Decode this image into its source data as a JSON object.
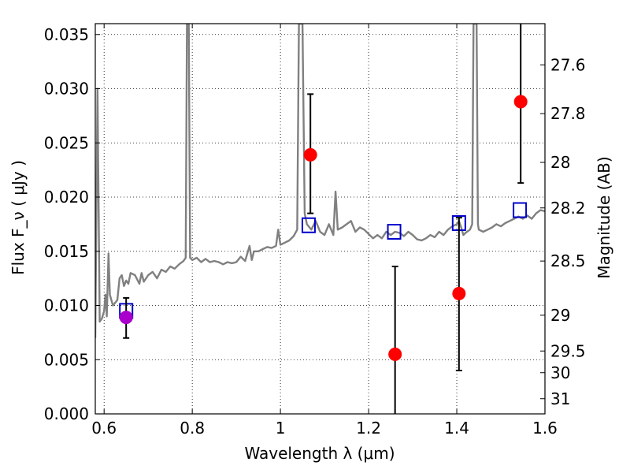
{
  "chart_data": {
    "type": "scatter",
    "xlabel": "Wavelength  λ (μm)",
    "ylabel": "Flux  F_ν  ( μJy )",
    "y2label": "Magnitude (AB)",
    "xlim": [
      0.58,
      1.6
    ],
    "ylim": [
      0.0,
      0.036
    ],
    "grid": true,
    "x_ticks": [
      {
        "value": 0.6,
        "label": "0.6"
      },
      {
        "value": 0.8,
        "label": "0.8"
      },
      {
        "value": 1.0,
        "label": "1"
      },
      {
        "value": 1.2,
        "label": "1.2"
      },
      {
        "value": 1.4,
        "label": "1.4"
      },
      {
        "value": 1.6,
        "label": "1.6"
      }
    ],
    "y_ticks": [
      {
        "value": 0.0,
        "label": "0.000"
      },
      {
        "value": 0.005,
        "label": "0.005"
      },
      {
        "value": 0.01,
        "label": "0.010"
      },
      {
        "value": 0.015,
        "label": "0.015"
      },
      {
        "value": 0.02,
        "label": "0.020"
      },
      {
        "value": 0.025,
        "label": "0.025"
      },
      {
        "value": 0.03,
        "label": "0.030"
      },
      {
        "value": 0.035,
        "label": "0.035"
      }
    ],
    "y2_ticks": [
      {
        "flux": 0.0322,
        "label": "27.6"
      },
      {
        "flux": 0.0277,
        "label": "27.8"
      },
      {
        "flux": 0.0232,
        "label": "28"
      },
      {
        "flux": 0.019,
        "label": "28.2"
      },
      {
        "flux": 0.0141,
        "label": "28.5"
      },
      {
        "flux": 0.0091,
        "label": "29"
      },
      {
        "flux": 0.0058,
        "label": "29.5"
      },
      {
        "flux": 0.0038,
        "label": "30"
      },
      {
        "flux": 0.0014,
        "label": "31"
      }
    ],
    "series": [
      {
        "kind": "spectrum-line",
        "color": "#808080",
        "points": [
          [
            0.58,
            0.007
          ],
          [
            0.585,
            0.03
          ],
          [
            0.59,
            0.0085
          ],
          [
            0.595,
            0.0088
          ],
          [
            0.6,
            0.0095
          ],
          [
            0.603,
            0.011
          ],
          [
            0.606,
            0.009
          ],
          [
            0.61,
            0.0148
          ],
          [
            0.613,
            0.011
          ],
          [
            0.62,
            0.01
          ],
          [
            0.63,
            0.0105
          ],
          [
            0.635,
            0.0125
          ],
          [
            0.64,
            0.0128
          ],
          [
            0.645,
            0.0118
          ],
          [
            0.65,
            0.0123
          ],
          [
            0.655,
            0.012
          ],
          [
            0.66,
            0.013
          ],
          [
            0.67,
            0.0128
          ],
          [
            0.68,
            0.012
          ],
          [
            0.685,
            0.013
          ],
          [
            0.69,
            0.0122
          ],
          [
            0.7,
            0.0128
          ],
          [
            0.71,
            0.0131
          ],
          [
            0.72,
            0.0125
          ],
          [
            0.73,
            0.0133
          ],
          [
            0.74,
            0.0131
          ],
          [
            0.75,
            0.0136
          ],
          [
            0.76,
            0.0134
          ],
          [
            0.77,
            0.0138
          ],
          [
            0.78,
            0.0141
          ],
          [
            0.785,
            0.0144
          ],
          [
            0.788,
            0.036
          ],
          [
            0.792,
            0.036
          ],
          [
            0.795,
            0.0144
          ],
          [
            0.8,
            0.0142
          ],
          [
            0.81,
            0.0144
          ],
          [
            0.82,
            0.014
          ],
          [
            0.83,
            0.0143
          ],
          [
            0.84,
            0.014
          ],
          [
            0.85,
            0.0141
          ],
          [
            0.86,
            0.014
          ],
          [
            0.87,
            0.0138
          ],
          [
            0.88,
            0.014
          ],
          [
            0.89,
            0.0139
          ],
          [
            0.9,
            0.014
          ],
          [
            0.91,
            0.0145
          ],
          [
            0.92,
            0.0141
          ],
          [
            0.93,
            0.0155
          ],
          [
            0.935,
            0.0142
          ],
          [
            0.94,
            0.015
          ],
          [
            0.95,
            0.015
          ],
          [
            0.96,
            0.0152
          ],
          [
            0.97,
            0.0154
          ],
          [
            0.98,
            0.0153
          ],
          [
            0.99,
            0.0155
          ],
          [
            0.995,
            0.017
          ],
          [
            1.0,
            0.0156
          ],
          [
            1.01,
            0.0158
          ],
          [
            1.02,
            0.016
          ],
          [
            1.03,
            0.0164
          ],
          [
            1.038,
            0.017
          ],
          [
            1.042,
            0.036
          ],
          [
            1.05,
            0.036
          ],
          [
            1.055,
            0.0185
          ],
          [
            1.06,
            0.0175
          ],
          [
            1.07,
            0.017
          ],
          [
            1.08,
            0.0178
          ],
          [
            1.09,
            0.0168
          ],
          [
            1.1,
            0.0165
          ],
          [
            1.11,
            0.0175
          ],
          [
            1.12,
            0.0165
          ],
          [
            1.125,
            0.0205
          ],
          [
            1.13,
            0.017
          ],
          [
            1.14,
            0.0172
          ],
          [
            1.15,
            0.0175
          ],
          [
            1.16,
            0.0178
          ],
          [
            1.17,
            0.0168
          ],
          [
            1.18,
            0.0172
          ],
          [
            1.19,
            0.017
          ],
          [
            1.2,
            0.0166
          ],
          [
            1.21,
            0.0162
          ],
          [
            1.22,
            0.0165
          ],
          [
            1.23,
            0.0162
          ],
          [
            1.24,
            0.0168
          ],
          [
            1.25,
            0.0165
          ],
          [
            1.26,
            0.0168
          ],
          [
            1.27,
            0.0167
          ],
          [
            1.28,
            0.0164
          ],
          [
            1.29,
            0.0168
          ],
          [
            1.3,
            0.0165
          ],
          [
            1.31,
            0.0161
          ],
          [
            1.32,
            0.016
          ],
          [
            1.33,
            0.0162
          ],
          [
            1.34,
            0.0165
          ],
          [
            1.35,
            0.0163
          ],
          [
            1.36,
            0.0168
          ],
          [
            1.37,
            0.0165
          ],
          [
            1.38,
            0.017
          ],
          [
            1.39,
            0.0173
          ],
          [
            1.4,
            0.0175
          ],
          [
            1.405,
            0.0178
          ],
          [
            1.41,
            0.0172
          ],
          [
            1.415,
            0.0165
          ],
          [
            1.42,
            0.0167
          ],
          [
            1.43,
            0.017
          ],
          [
            1.435,
            0.0175
          ],
          [
            1.438,
            0.036
          ],
          [
            1.445,
            0.036
          ],
          [
            1.448,
            0.0175
          ],
          [
            1.45,
            0.017
          ],
          [
            1.46,
            0.0168
          ],
          [
            1.47,
            0.017
          ],
          [
            1.48,
            0.0172
          ],
          [
            1.49,
            0.0175
          ],
          [
            1.5,
            0.0173
          ],
          [
            1.51,
            0.0176
          ],
          [
            1.52,
            0.0178
          ],
          [
            1.53,
            0.018
          ],
          [
            1.54,
            0.0182
          ],
          [
            1.55,
            0.018
          ],
          [
            1.56,
            0.0183
          ],
          [
            1.57,
            0.018
          ],
          [
            1.58,
            0.0185
          ],
          [
            1.59,
            0.0188
          ],
          [
            1.6,
            0.0187
          ]
        ]
      },
      {
        "kind": "model-photometry",
        "marker": "open-square",
        "color": "#0000cc",
        "points": [
          {
            "x": 0.65,
            "y": 0.0095
          },
          {
            "x": 1.064,
            "y": 0.0174
          },
          {
            "x": 1.258,
            "y": 0.0168
          },
          {
            "x": 1.405,
            "y": 0.0176
          },
          {
            "x": 1.543,
            "y": 0.0188
          }
        ]
      },
      {
        "kind": "observed-photometry",
        "marker": "filled-circle",
        "color": "#ff0000",
        "points": [
          {
            "x": 1.068,
            "y": 0.0239,
            "err_lo": 0.0185,
            "err_hi": 0.0295
          },
          {
            "x": 1.26,
            "y": 0.0055,
            "err_lo": 0.0,
            "err_hi": 0.0136
          },
          {
            "x": 1.405,
            "y": 0.0111,
            "err_lo": 0.004,
            "err_hi": 0.0181
          },
          {
            "x": 1.545,
            "y": 0.0288,
            "err_lo": 0.0213,
            "err_hi": 0.036
          }
        ]
      },
      {
        "kind": "observed-photometry-optical",
        "marker": "filled-circle",
        "color": "#aa00cc",
        "points": [
          {
            "x": 0.65,
            "y": 0.0089,
            "err_lo": 0.007,
            "err_hi": 0.0107
          }
        ]
      }
    ]
  }
}
